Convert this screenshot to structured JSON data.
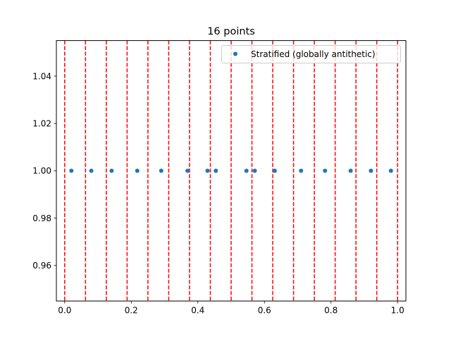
{
  "chart_data": {
    "type": "scatter",
    "title": "16 points",
    "xlabel": "",
    "ylabel": "",
    "xlim": [
      -0.025,
      1.025
    ],
    "ylim": [
      0.945,
      1.055
    ],
    "x_ticks": [
      0.0,
      0.2,
      0.4,
      0.6,
      0.8,
      1.0
    ],
    "x_tick_labels": [
      "0.0",
      "0.2",
      "0.4",
      "0.6",
      "0.8",
      "1.0"
    ],
    "y_ticks": [
      0.96,
      0.98,
      1.0,
      1.02,
      1.04
    ],
    "y_tick_labels": [
      "0.96",
      "0.98",
      "1.00",
      "1.02",
      "1.04"
    ],
    "grid": false,
    "legend_position": "top-right",
    "series": [
      {
        "name": "Stratified (globally antithetic)",
        "color": "#1f77b4",
        "marker": "dot",
        "x": [
          0.02,
          0.08,
          0.141,
          0.218,
          0.29,
          0.369,
          0.429,
          0.454,
          0.546,
          0.571,
          0.631,
          0.71,
          0.782,
          0.859,
          0.92,
          0.98
        ],
        "y": [
          1.0,
          1.0,
          1.0,
          1.0,
          1.0,
          1.0,
          1.0,
          1.0,
          1.0,
          1.0,
          1.0,
          1.0,
          1.0,
          1.0,
          1.0,
          1.0
        ]
      }
    ],
    "vertical_lines": {
      "color": "#ff0000",
      "style": "dashed",
      "x": [
        0.0,
        0.0625,
        0.125,
        0.1875,
        0.25,
        0.3125,
        0.375,
        0.4375,
        0.5,
        0.5625,
        0.625,
        0.6875,
        0.75,
        0.8125,
        0.875,
        0.9375,
        1.0
      ]
    }
  }
}
